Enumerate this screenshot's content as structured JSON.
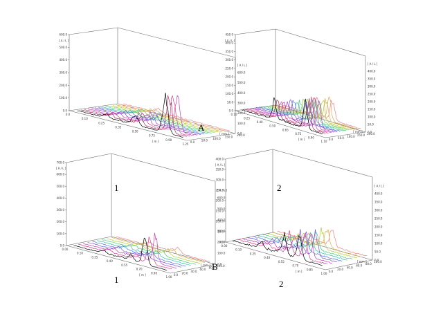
{
  "figure": {
    "panel_labels": {
      "A": "A",
      "B": "B"
    },
    "sub_labels": {
      "b1_inside": "1",
      "b2_inside": "2",
      "b1_below": "1",
      "b2_below": "2"
    }
  },
  "colors": [
    "#f08080",
    "#e8a060",
    "#d8b040",
    "#b8c830",
    "#80d040",
    "#40d070",
    "#30c0a0",
    "#40a0d8",
    "#5070e0",
    "#7050e0",
    "#a040d8",
    "#c040b0",
    "#d84090",
    "#a03060",
    "#000000"
  ],
  "chart_data": [
    {
      "id": "A1",
      "type": "line",
      "projection": "3d-waterfall",
      "x_label": "[ m ]",
      "y_label": "[ mm ]",
      "z_label": "[ A / L ]",
      "x_ticks": [
        "0.0",
        "0.10",
        "0.25",
        "0.35",
        "0.50",
        "0.75",
        "0.90",
        "1.25"
      ],
      "y_ticks": [
        "0.0",
        "50.0",
        "100.0",
        "150.0",
        "200.0"
      ],
      "z_ticks": [
        "0.0",
        "100.0",
        "200.0",
        "300.0",
        "400.0",
        "500.0",
        "600.0"
      ],
      "z_ticks_right": [
        "0.0",
        "100.0",
        "200.0",
        "300.0",
        "400.0",
        "500.0",
        "600.0"
      ],
      "zlim": [
        0,
        600
      ],
      "series_count": 14,
      "peaks": [
        {
          "x": 0.4,
          "height": 40,
          "series_from": 0,
          "series_to": 13
        },
        {
          "x": 0.72,
          "height": 100,
          "series_from": 0,
          "series_to": 6
        },
        {
          "x": 1.05,
          "height": 380,
          "series_from": 0,
          "series_to": 3
        }
      ]
    },
    {
      "id": "A2",
      "type": "line",
      "projection": "3d-waterfall",
      "x_label": "[ m ]",
      "y_label": "[ mm ]",
      "z_label": "[ A / L ]",
      "x_ticks": [
        "0.10",
        "0.25",
        "0.40",
        "0.50",
        "0.65",
        "0.75",
        "0.90",
        "1.10"
      ],
      "y_ticks": [
        "0.0",
        "50.0",
        "100.0",
        "150.0",
        "200.0"
      ],
      "z_ticks": [
        "0.0",
        "50.0",
        "100.0",
        "150.0",
        "200.0",
        "250.0",
        "300.0",
        "350.0",
        "400.0",
        "450.0"
      ],
      "z_ticks_right": [
        "0.0",
        "50.0",
        "100.0",
        "150.0",
        "200.0",
        "250.0",
        "300.0",
        "350.0",
        "400.0"
      ],
      "zlim": [
        0,
        450
      ],
      "series_count": 14,
      "peaks": [
        {
          "x": 0.55,
          "height": 120,
          "series_from": 0,
          "series_to": 13
        },
        {
          "x": 0.8,
          "height": 150,
          "series_from": 5,
          "series_to": 13
        },
        {
          "x": 1.0,
          "height": 220,
          "series_from": 0,
          "series_to": 4
        }
      ]
    },
    {
      "id": "B1",
      "type": "line",
      "projection": "3d-waterfall",
      "x_label": "[ m ]",
      "y_label": "[ mm ]",
      "z_label": "[ A / L ]",
      "x_ticks": [
        "0.00",
        "0.10",
        "0.25",
        "0.40",
        "0.55",
        "0.70",
        "0.90",
        "1.00"
      ],
      "y_ticks": [
        "0.0",
        "20.0",
        "40.0",
        "60.0",
        "80.0",
        "100.0"
      ],
      "z_ticks": [
        "0.0",
        "100.0",
        "200.0",
        "300.0",
        "400.0",
        "500.0",
        "600.0",
        "700.0"
      ],
      "z_ticks_right": [
        "0.0",
        "100.0",
        "200.0",
        "300.0",
        "400.0",
        "500.0",
        "600.0"
      ],
      "zlim": [
        0,
        700
      ],
      "series_count": 10,
      "peaks": [
        {
          "x": 0.45,
          "height": 35,
          "series_from": 0,
          "series_to": 9
        },
        {
          "x": 0.8,
          "height": 60,
          "series_from": 0,
          "series_to": 9
        },
        {
          "x": 0.97,
          "height": 300,
          "series_from": 0,
          "series_to": 2
        }
      ]
    },
    {
      "id": "B2",
      "type": "line",
      "projection": "3d-waterfall",
      "x_label": "[ m ]",
      "y_label": "[ mm ]",
      "z_label": "[ A / L ]",
      "x_ticks": [
        "0.00",
        "0.10",
        "0.25",
        "0.40",
        "0.55",
        "0.70",
        "0.85",
        "1.00"
      ],
      "y_ticks": [
        "0.0",
        "20.0",
        "40.0",
        "60.0",
        "80.0",
        "100.0"
      ],
      "z_ticks": [
        "0.0",
        "50.0",
        "100.0",
        "150.0",
        "200.0",
        "250.0",
        "300.0",
        "350.0",
        "400.0"
      ],
      "z_ticks_right": [
        "0.0",
        "50.0",
        "100.0",
        "150.0",
        "200.0",
        "250.0",
        "300.0",
        "350.0",
        "400.0"
      ],
      "zlim": [
        0,
        400
      ],
      "series_count": 10,
      "peaks": [
        {
          "x": 0.45,
          "height": 40,
          "series_from": 0,
          "series_to": 9
        },
        {
          "x": 0.75,
          "height": 110,
          "series_from": 0,
          "series_to": 9
        },
        {
          "x": 0.95,
          "height": 150,
          "series_from": 0,
          "series_to": 3
        }
      ]
    }
  ]
}
